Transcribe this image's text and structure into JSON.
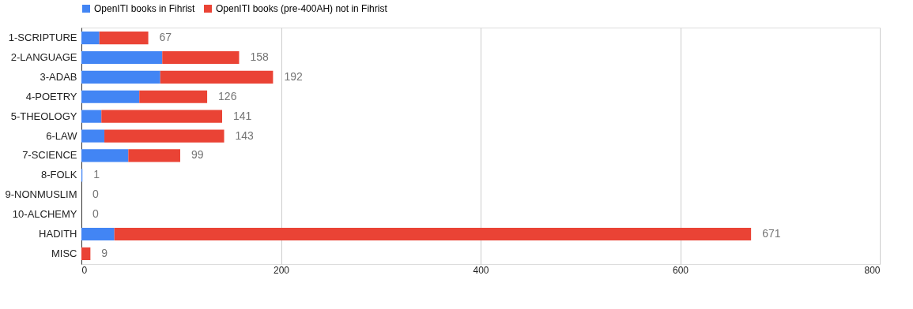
{
  "chart_data": {
    "type": "bar",
    "orientation": "horizontal",
    "stacked": true,
    "categories": [
      "1-SCRIPTURE",
      "2-LANGUAGE",
      "3-ADAB",
      "4-POETRY",
      "5-THEOLOGY",
      "6-LAW",
      "7-SCIENCE",
      "8-FOLK",
      "9-NONMUSLIM",
      "10-ALCHEMY",
      "HADITH",
      "MISC"
    ],
    "series": [
      {
        "name": "OpenITI books in Fihrist",
        "color": "#4285f4",
        "values": [
          18,
          81,
          79,
          58,
          20,
          23,
          47,
          1,
          0,
          0,
          33,
          0
        ]
      },
      {
        "name": "OpenITI books (pre-400AH) not in Fihrist",
        "color": "#ea4335",
        "values": [
          49,
          77,
          113,
          68,
          121,
          120,
          52,
          0,
          0,
          0,
          638,
          9
        ]
      }
    ],
    "totals": [
      "67",
      "158",
      "192",
      "126",
      "141",
      "143",
      "99",
      "1",
      "0",
      "0",
      "671",
      "9"
    ],
    "xlim": [
      0,
      800
    ],
    "xticks": [
      0,
      200,
      400,
      600,
      800
    ],
    "grid": "x",
    "legend": "top"
  }
}
